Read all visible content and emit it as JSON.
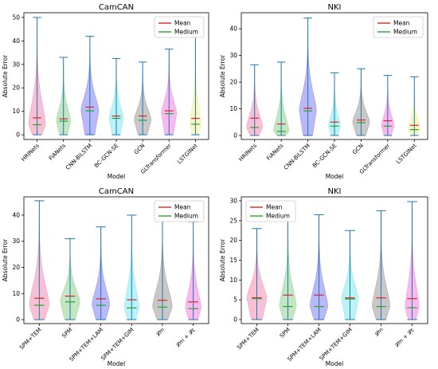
{
  "chart_data": [
    {
      "type": "violin",
      "title": "CamCAN",
      "xlabel": "Model",
      "ylabel": "Absolute Error",
      "ylim": [
        -2,
        52
      ],
      "yticks": [
        0,
        10,
        20,
        30,
        40,
        50
      ],
      "legend": {
        "placement": "top-right",
        "entries": [
          {
            "label": "Mean",
            "color": "#d62728"
          },
          {
            "label": "Medium",
            "color": "#2ca02c"
          }
        ]
      },
      "categories": [
        "HRINets",
        "FiANets",
        "CNN-BiLSTM",
        "BC-GCN-SE",
        "GCN",
        "GLTransformer",
        "LSTGINet"
      ],
      "colors": [
        "#f08cb0",
        "#8fd18f",
        "#8080f0",
        "#80e8f0",
        "#9a9a9a",
        "#f080e0",
        "#f0f090"
      ],
      "max": [
        50,
        33,
        42,
        32.5,
        31,
        36.5,
        42.5
      ],
      "mean": [
        7.2,
        6.8,
        11.8,
        8.0,
        8.0,
        10.2,
        7.0
      ],
      "median": [
        4.3,
        5.8,
        10.2,
        7.0,
        6.2,
        9.0,
        4.5
      ],
      "width_scale": [
        1.0,
        0.85,
        1.05,
        0.85,
        1.0,
        0.9,
        0.65
      ]
    },
    {
      "type": "violin",
      "title": "NKI",
      "xlabel": "Model",
      "ylabel": "Absolute Error",
      "ylim": [
        -1.5,
        46
      ],
      "yticks": [
        0,
        10,
        20,
        30,
        40
      ],
      "legend": {
        "placement": "top-right",
        "entries": [
          {
            "label": "Mean",
            "color": "#d62728"
          },
          {
            "label": "Medium",
            "color": "#2ca02c"
          }
        ]
      },
      "categories": [
        "HRINets",
        "FiANets",
        "CNN-BiLSTM",
        "BC-GCN-SE",
        "GCN",
        "GLTransformer",
        "LSTGINet"
      ],
      "colors": [
        "#f08cb0",
        "#8fd18f",
        "#8080f0",
        "#80e8f0",
        "#9a9a9a",
        "#f080e0",
        "#f0f090"
      ],
      "max": [
        26.5,
        27.5,
        44,
        23.5,
        25,
        22.5,
        22
      ],
      "mean": [
        6.5,
        4.3,
        10.2,
        5.0,
        5.8,
        5.5,
        3.8
      ],
      "median": [
        3.0,
        1.5,
        9.2,
        3.5,
        4.8,
        3.5,
        2.2
      ],
      "width_scale": [
        0.95,
        0.9,
        1.0,
        0.7,
        1.0,
        0.75,
        0.65
      ]
    },
    {
      "type": "violin",
      "title": "CamCAN",
      "xlabel": "Model",
      "ylabel": "Absolute Error",
      "ylim": [
        -1.5,
        47
      ],
      "yticks": [
        0,
        10,
        20,
        30,
        40
      ],
      "legend": {
        "placement": "top-right",
        "entries": [
          {
            "label": "Mean",
            "color": "#d62728"
          },
          {
            "label": "Medium",
            "color": "#2ca02c"
          }
        ]
      },
      "categories": [
        "SPM+TEM",
        "SPM",
        "SPM+TEM+LAM",
        "SPM+TEM+GIM",
        "𝓛m",
        "𝓛m + 𝓛c"
      ],
      "colors": [
        "#f08cb0",
        "#8fd18f",
        "#8080f0",
        "#80e8f0",
        "#9a9a9a",
        "#f080e0"
      ],
      "max": [
        45.5,
        31,
        35.5,
        40,
        39.5,
        37.5
      ],
      "mean": [
        8.2,
        9.0,
        8.0,
        7.6,
        7.4,
        6.8
      ],
      "median": [
        5.5,
        6.8,
        5.5,
        4.5,
        4.8,
        4.2
      ],
      "width_scale": [
        1.0,
        1.0,
        0.9,
        0.75,
        1.0,
        0.8
      ]
    },
    {
      "type": "violin",
      "title": "NKI",
      "xlabel": "Model",
      "ylabel": "Absolute Error",
      "ylim": [
        -1,
        31
      ],
      "yticks": [
        0,
        5,
        10,
        15,
        20,
        25,
        30
      ],
      "legend": {
        "placement": "top-left",
        "entries": [
          {
            "label": "Mean",
            "color": "#d62728"
          },
          {
            "label": "Medium",
            "color": "#2ca02c"
          }
        ]
      },
      "categories": [
        "SPM+TEM",
        "SPM",
        "SPM+TEM+LAM",
        "SPM+TEM+GIM",
        "𝓛m",
        "𝓛m + 𝓛c"
      ],
      "colors": [
        "#f08cb0",
        "#8fd18f",
        "#8080f0",
        "#80e8f0",
        "#9a9a9a",
        "#f080e0"
      ],
      "max": [
        23,
        26.5,
        26.5,
        22.5,
        27.5,
        29.8
      ],
      "mean": [
        5.5,
        6.2,
        6.2,
        5.5,
        5.5,
        5.3
      ],
      "median": [
        5.3,
        3.3,
        3.3,
        5.2,
        3.3,
        3.0
      ],
      "width_scale": [
        1.0,
        0.85,
        0.9,
        0.85,
        0.9,
        0.7
      ]
    }
  ]
}
